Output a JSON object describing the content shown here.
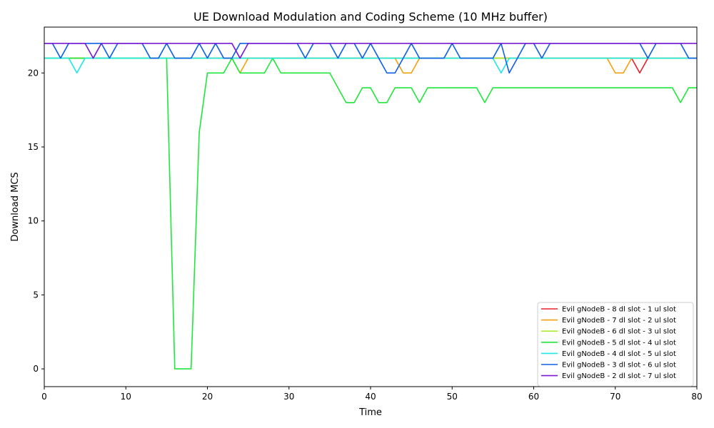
{
  "chart_data": {
    "type": "line",
    "title": "UE Download Modulation and Coding Scheme (10 MHz buffer)",
    "xlabel": "Time",
    "ylabel": "Download MCS",
    "xlim": [
      0,
      80
    ],
    "ylim": [
      -1.2,
      23.1
    ],
    "xticks": [
      0,
      10,
      20,
      30,
      40,
      50,
      60,
      70,
      80
    ],
    "yticks": [
      0,
      5,
      10,
      15,
      20
    ],
    "grid": false,
    "legend_position": "lower-right",
    "series": [
      {
        "name": "Evil gNodeB - 8 dl slot - 1 ul slot",
        "color": "#e8202a",
        "x": [
          0,
          72,
          73,
          74,
          80
        ],
        "y": [
          21,
          21,
          20,
          21,
          21
        ]
      },
      {
        "name": "Evil gNodeB - 7 dl slot - 2 ul slot",
        "color": "#f5a00f",
        "x": [
          0,
          23,
          24,
          25,
          43,
          44,
          45,
          46,
          69,
          70,
          71,
          72,
          80
        ],
        "y": [
          21,
          21,
          20,
          21,
          21,
          20,
          20,
          21,
          21,
          20,
          20,
          21,
          21
        ]
      },
      {
        "name": "Evil gNodeB - 6 dl slot - 3 ul slot",
        "color": "#a8ef2e",
        "x": [
          0,
          80
        ],
        "y": [
          21,
          21
        ]
      },
      {
        "name": "Evil gNodeB - 5 dl slot - 4 ul slot",
        "color": "#1ee83a",
        "x": [
          0,
          15,
          16,
          17,
          18,
          19,
          20,
          21,
          22,
          23,
          24,
          25,
          26,
          27,
          28,
          29,
          30,
          31,
          32,
          33,
          34,
          35,
          36,
          37,
          38,
          39,
          40,
          41,
          42,
          43,
          44,
          45,
          46,
          47,
          48,
          49,
          50,
          51,
          52,
          53,
          54,
          55,
          56,
          57,
          58,
          59,
          60,
          61,
          62,
          63,
          64,
          65,
          66,
          67,
          68,
          69,
          70,
          71,
          72,
          73,
          74,
          75,
          76,
          77,
          78,
          79,
          80
        ],
        "y": [
          21,
          21,
          0,
          0,
          0,
          16,
          20,
          20,
          20,
          21,
          20,
          20,
          20,
          20,
          21,
          20,
          20,
          20,
          20,
          20,
          20,
          20,
          19,
          18,
          18,
          19,
          19,
          18,
          18,
          19,
          19,
          19,
          18,
          19,
          19,
          19,
          19,
          19,
          19,
          19,
          18,
          19,
          19,
          19,
          19,
          19,
          19,
          19,
          19,
          19,
          19,
          19,
          19,
          19,
          19,
          19,
          19,
          19,
          19,
          19,
          19,
          19,
          19,
          19,
          18,
          19,
          19
        ]
      },
      {
        "name": "Evil gNodeB - 4 dl slot - 5 ul slot",
        "color": "#1fe8e8",
        "x": [
          0,
          3,
          4,
          5,
          55,
          56,
          57,
          80
        ],
        "y": [
          21,
          21,
          20,
          21,
          21,
          20,
          21,
          21
        ]
      },
      {
        "name": "Evil gNodeB - 3 dl slot - 6 ul slot",
        "color": "#1060e8",
        "x": [
          0,
          1,
          2,
          3,
          4,
          5,
          6,
          7,
          8,
          9,
          10,
          11,
          12,
          13,
          14,
          15,
          16,
          17,
          18,
          19,
          20,
          21,
          22,
          23,
          24,
          25,
          26,
          27,
          28,
          29,
          30,
          31,
          32,
          33,
          34,
          35,
          36,
          37,
          38,
          39,
          40,
          41,
          42,
          43,
          44,
          45,
          46,
          47,
          48,
          49,
          50,
          51,
          52,
          53,
          54,
          55,
          56,
          57,
          58,
          59,
          60,
          61,
          62,
          63,
          64,
          65,
          66,
          67,
          68,
          69,
          70,
          71,
          72,
          73,
          74,
          75,
          76,
          77,
          78,
          79,
          80
        ],
        "y": [
          22,
          22,
          21,
          22,
          22,
          22,
          22,
          22,
          21,
          22,
          22,
          22,
          22,
          21,
          21,
          22,
          21,
          21,
          21,
          22,
          21,
          22,
          21,
          21,
          22,
          22,
          22,
          22,
          22,
          22,
          22,
          22,
          21,
          22,
          22,
          22,
          21,
          22,
          22,
          21,
          22,
          21,
          20,
          20,
          21,
          22,
          21,
          21,
          21,
          21,
          22,
          21,
          21,
          21,
          21,
          21,
          22,
          20,
          21,
          22,
          22,
          21,
          22,
          22,
          22,
          22,
          22,
          22,
          22,
          22,
          22,
          22,
          22,
          22,
          21,
          22,
          22,
          22,
          22,
          21,
          21
        ]
      },
      {
        "name": "Evil gNodeB - 2 dl slot - 7 ul slot",
        "color": "#7b19d6",
        "x": [
          0,
          5,
          6,
          7,
          23,
          24,
          25,
          80
        ],
        "y": [
          22,
          22,
          21,
          22,
          22,
          21,
          22,
          22
        ]
      }
    ]
  }
}
